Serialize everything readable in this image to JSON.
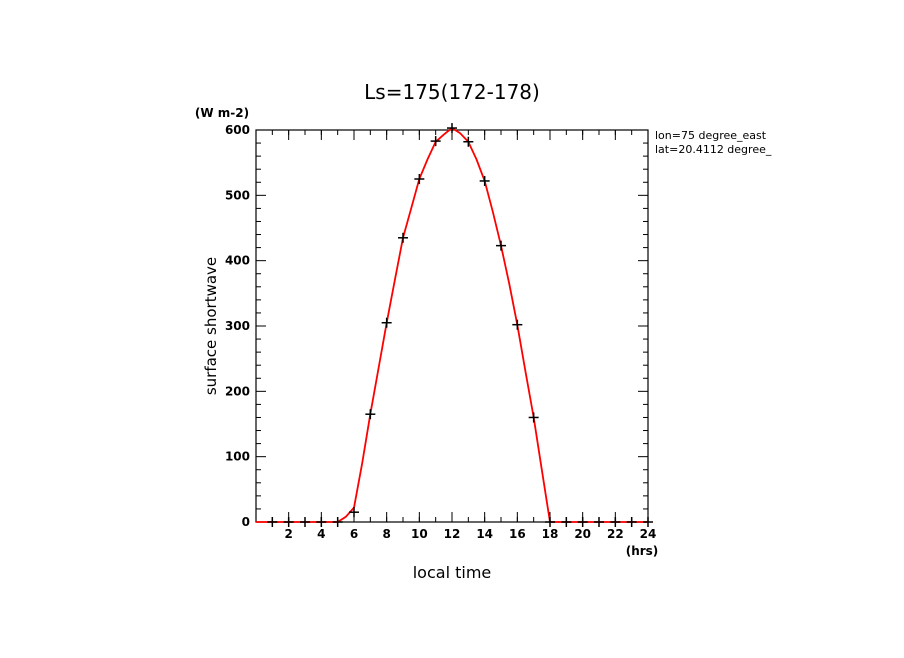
{
  "chart_data": {
    "type": "line",
    "title": "Ls=175(172-178)",
    "xlabel": "local time",
    "ylabel": "surface shortwave",
    "x_unit": "(hrs)",
    "y_unit": "(W m-2)",
    "annotations": [
      "lon=75 degree_east",
      "lat=20.4112 degree_"
    ],
    "xlim": [
      0,
      24
    ],
    "ylim": [
      0,
      600
    ],
    "x_ticks": [
      2,
      4,
      6,
      8,
      10,
      12,
      14,
      16,
      18,
      20,
      22,
      24
    ],
    "y_ticks": [
      0,
      100,
      200,
      300,
      400,
      500,
      600
    ],
    "grid": false,
    "legend": "none",
    "series": [
      {
        "style": "line",
        "color": "#ff0000",
        "x": [
          0,
          0.5,
          1,
          1.5,
          2,
          2.5,
          3,
          3.5,
          4,
          4.5,
          5,
          5.5,
          6,
          6.5,
          7,
          7.5,
          8,
          8.5,
          9,
          9.5,
          10,
          10.5,
          11,
          11.5,
          12,
          12.5,
          13,
          13.5,
          14,
          14.5,
          15,
          15.5,
          16,
          16.5,
          17,
          17.5,
          18,
          18.5,
          19,
          19.5,
          20,
          20.5,
          21,
          21.5,
          22,
          22.5,
          23,
          23.5,
          24
        ],
        "y": [
          0,
          0,
          0,
          0,
          0,
          0,
          0,
          0,
          0,
          0,
          0,
          8,
          22,
          90,
          165,
          235,
          305,
          370,
          435,
          480,
          525,
          555,
          582,
          593,
          603,
          595,
          582,
          555,
          522,
          475,
          423,
          365,
          302,
          230,
          160,
          80,
          0,
          0,
          0,
          0,
          0,
          0,
          0,
          0,
          0,
          0,
          0,
          0,
          0
        ]
      },
      {
        "style": "markers",
        "color": "#000000",
        "x": [
          1,
          2,
          3,
          4,
          5,
          6,
          7,
          8,
          9,
          10,
          11,
          12,
          13,
          14,
          15,
          16,
          17,
          18,
          19,
          20,
          21,
          22,
          23,
          24
        ],
        "y": [
          0,
          0,
          0,
          0,
          0,
          15,
          165,
          305,
          435,
          525,
          583,
          603,
          582,
          522,
          423,
          302,
          160,
          0,
          0,
          0,
          0,
          0,
          0,
          0
        ]
      }
    ]
  }
}
